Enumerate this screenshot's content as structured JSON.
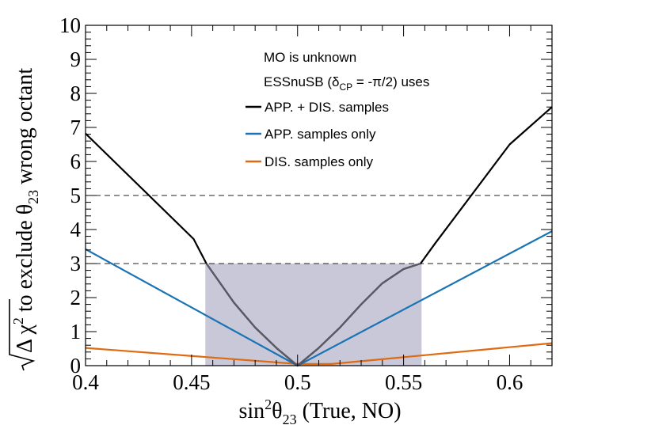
{
  "chart_data": {
    "type": "line",
    "xlabel": {
      "main": "sin",
      "sup": "2",
      "theta": "θ",
      "sub": "23",
      "rest": " (True, NO)"
    },
    "ylabel": {
      "prefix": "Δ χ",
      "sup": "2",
      "middle": " to exclude θ",
      "sub": "23",
      "suffix": " wrong octant"
    },
    "xlim": [
      0.4,
      0.62
    ],
    "ylim": [
      0,
      10
    ],
    "xticks": [
      0.4,
      0.45,
      0.5,
      0.55,
      0.6
    ],
    "xtick_labels": [
      "0.4",
      "0.45",
      "0.5",
      "0.55",
      "0.6"
    ],
    "yticks": [
      0,
      1,
      2,
      3,
      4,
      5,
      6,
      7,
      8,
      9,
      10
    ],
    "ytick_labels": [
      "0",
      "1",
      "2",
      "3",
      "4",
      "5",
      "6",
      "7",
      "8",
      "9",
      "10"
    ],
    "reference_lines": [
      3,
      5
    ],
    "shaded_region": {
      "x": [
        0.4565,
        0.5585
      ],
      "y": [
        0,
        3
      ],
      "color": "#c9c8d9"
    },
    "annotations": {
      "line1": "MO is unknown",
      "line2_pre": "ESSnuSB (δ",
      "line2_sub": "CP",
      "line2_post": " = -π/2) uses"
    },
    "series": [
      {
        "name": "APP. + DIS. samples",
        "color": "#000000",
        "points": [
          [
            0.4,
            6.82
          ],
          [
            0.451,
            3.72
          ],
          [
            0.457,
            3.0
          ],
          [
            0.47,
            1.85
          ],
          [
            0.48,
            1.12
          ],
          [
            0.49,
            0.52
          ],
          [
            0.5,
            0.0
          ],
          [
            0.51,
            0.52
          ],
          [
            0.52,
            1.12
          ],
          [
            0.53,
            1.8
          ],
          [
            0.54,
            2.42
          ],
          [
            0.55,
            2.84
          ],
          [
            0.558,
            3.0
          ],
          [
            0.565,
            3.6
          ],
          [
            0.6,
            6.5
          ],
          [
            0.62,
            7.6
          ]
        ]
      },
      {
        "name": "APP. samples only",
        "color": "#1a74b4",
        "points": [
          [
            0.4,
            3.42
          ],
          [
            0.5,
            0.0
          ],
          [
            0.62,
            3.95
          ]
        ]
      },
      {
        "name": "DIS. samples only",
        "color": "#e06a10",
        "points": [
          [
            0.4,
            0.52
          ],
          [
            0.5,
            0.05
          ],
          [
            0.516,
            0.05
          ],
          [
            0.62,
            0.66
          ]
        ]
      }
    ]
  }
}
